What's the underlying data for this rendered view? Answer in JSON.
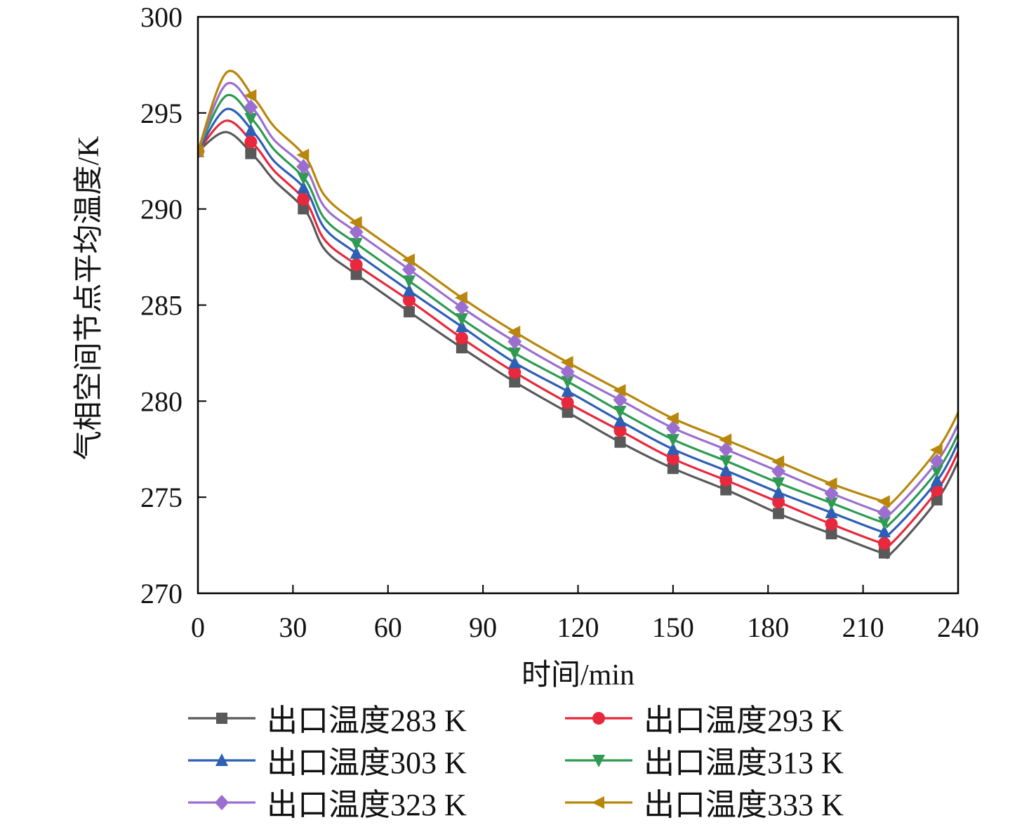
{
  "chart_data": {
    "type": "line",
    "title": "",
    "xlabel": "时间/min",
    "ylabel": "气相空间节点平均温度/K",
    "xlim": [
      0,
      240
    ],
    "ylim": [
      270,
      300
    ],
    "xticks": [
      "0",
      "30",
      "60",
      "90",
      "120",
      "150",
      "180",
      "210",
      "240"
    ],
    "yticks": [
      "270",
      "275",
      "280",
      "285",
      "290",
      "295",
      "300"
    ],
    "grid": false,
    "legend_position": "bottom",
    "series": [
      {
        "name": "出口温度283 K",
        "color": "#595959",
        "marker": "square",
        "x": [
          0,
          9,
          18,
          24,
          34,
          40,
          50,
          68,
          84,
          100,
          118,
          134,
          150,
          168,
          184,
          200,
          216,
          219,
          234,
          242
        ],
        "y": [
          293.0,
          294.0,
          292.7,
          291.5,
          289.9,
          287.9,
          286.6,
          284.5,
          282.7,
          281.0,
          279.3,
          277.8,
          276.5,
          275.3,
          274.1,
          273.1,
          272.1,
          272.1,
          275.0,
          277.6
        ]
      },
      {
        "name": "出口温度293 K",
        "color": "#e8283c",
        "marker": "circle",
        "x": [
          0,
          9,
          18,
          24,
          34,
          40,
          50,
          68,
          84,
          100,
          118,
          134,
          150,
          168,
          184,
          200,
          216,
          219,
          234,
          242
        ],
        "y": [
          293.0,
          294.6,
          293.3,
          292.0,
          290.4,
          288.4,
          287.1,
          285.1,
          283.2,
          281.5,
          279.8,
          278.4,
          277.0,
          275.8,
          274.7,
          273.6,
          272.6,
          272.6,
          275.5,
          278.1
        ]
      },
      {
        "name": "出口温度303 K",
        "color": "#2d5fb4",
        "marker": "triangle-up",
        "x": [
          0,
          9,
          18,
          24,
          34,
          40,
          50,
          68,
          84,
          100,
          118,
          134,
          150,
          168,
          184,
          200,
          216,
          219,
          234,
          242
        ],
        "y": [
          293.0,
          295.2,
          293.9,
          292.5,
          291.0,
          289.0,
          287.7,
          285.6,
          283.8,
          282.0,
          280.4,
          278.9,
          277.5,
          276.3,
          275.2,
          274.2,
          273.2,
          273.2,
          276.0,
          278.6
        ]
      },
      {
        "name": "出口温度313 K",
        "color": "#2e9a52",
        "marker": "triangle-down",
        "x": [
          0,
          9,
          18,
          24,
          34,
          40,
          50,
          68,
          84,
          100,
          118,
          134,
          150,
          168,
          184,
          200,
          216,
          219,
          234,
          242
        ],
        "y": [
          293.0,
          295.9,
          294.5,
          293.1,
          291.5,
          289.5,
          288.2,
          286.1,
          284.2,
          282.5,
          280.9,
          279.4,
          278.0,
          276.8,
          275.7,
          274.7,
          273.7,
          273.7,
          276.5,
          279.0
        ]
      },
      {
        "name": "出口温度323 K",
        "color": "#9b6fcf",
        "marker": "diamond",
        "x": [
          0,
          9,
          18,
          24,
          34,
          40,
          50,
          68,
          84,
          100,
          118,
          134,
          150,
          168,
          184,
          200,
          216,
          219,
          234,
          242
        ],
        "y": [
          293.0,
          296.5,
          295.1,
          293.6,
          292.1,
          290.1,
          288.8,
          286.7,
          284.8,
          283.1,
          281.4,
          280.0,
          278.6,
          277.4,
          276.3,
          275.2,
          274.2,
          274.2,
          277.0,
          279.5
        ]
      },
      {
        "name": "出口温度333 K",
        "color": "#b8860b",
        "marker": "triangle-left",
        "x": [
          0,
          9,
          18,
          24,
          34,
          40,
          50,
          68,
          84,
          100,
          118,
          134,
          150,
          168,
          184,
          200,
          216,
          219,
          234,
          242
        ],
        "y": [
          293.0,
          297.1,
          295.7,
          294.3,
          292.7,
          290.7,
          289.3,
          287.2,
          285.3,
          283.6,
          281.9,
          280.5,
          279.1,
          277.9,
          276.8,
          275.7,
          274.8,
          274.7,
          277.6,
          280.1
        ]
      }
    ],
    "marker_x": [
      0,
      16.7,
      33.3,
      50,
      66.7,
      83.3,
      100,
      116.7,
      133.3,
      150,
      166.7,
      183.3,
      200,
      216.7,
      233.3
    ]
  }
}
